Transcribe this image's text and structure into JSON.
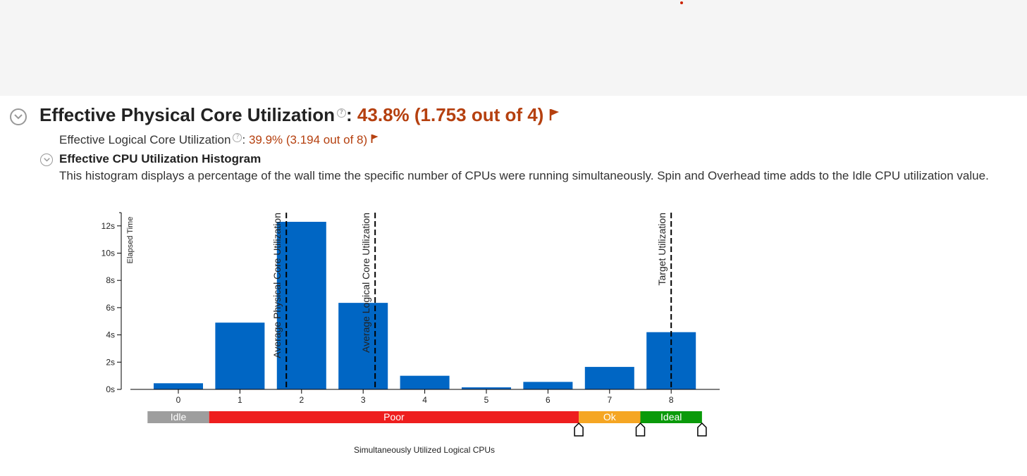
{
  "header": {
    "title": "Effective Physical Core Utilization",
    "title_value": "43.8% (1.753 out of 4)",
    "sub_title": "Effective Logical Core Utilization",
    "sub_value": "39.9% (3.194 out of 8)",
    "histogram_title": "Effective CPU Utilization Histogram",
    "description": "This histogram displays a percentage of the wall time the specific number of CPUs were running simultaneously. Spin and Overhead time adds to the Idle CPU utilization value.",
    "help_glyph": "?",
    "colon": ":"
  },
  "icons": {
    "collapse": "chevron-up-icon",
    "help": "help-icon",
    "flag": "flag-icon",
    "threshold_marker": "threshold-marker-icon"
  },
  "colors": {
    "bar": "#0066c4",
    "value_red": "#b5400f",
    "idle": "#9e9e9e",
    "poor": "#ee1e1e",
    "ok": "#f5a623",
    "ideal": "#0a9a0a"
  },
  "chart_data": {
    "type": "bar",
    "categories": [
      "0",
      "1",
      "2",
      "3",
      "4",
      "5",
      "6",
      "7",
      "8"
    ],
    "values": [
      0.45,
      4.9,
      12.3,
      6.35,
      1.0,
      0.15,
      0.55,
      1.65,
      4.2
    ],
    "ylabel": "Elapsed Time",
    "xlabel": "Simultaneously Utilized Logical CPUs",
    "ylim": [
      0,
      13
    ],
    "y_ticks": [
      0,
      2,
      4,
      6,
      8,
      10,
      12
    ],
    "y_tick_labels": [
      "0s",
      "2s",
      "4s",
      "6s",
      "8s",
      "10s",
      "12s"
    ],
    "reference_lines": [
      {
        "label": "Average Physical Core Utilization",
        "x": 1.753
      },
      {
        "label": "Average Logical Core Utilization",
        "x": 3.194
      },
      {
        "label": "Target Utilization",
        "x": 8
      }
    ],
    "ranges": [
      {
        "label": "Idle",
        "from": 0,
        "to": 0
      },
      {
        "label": "Poor",
        "from": 1,
        "to": 6
      },
      {
        "label": "Ok",
        "from": 7,
        "to": 7
      },
      {
        "label": "Ideal",
        "from": 8,
        "to": 8
      }
    ]
  }
}
